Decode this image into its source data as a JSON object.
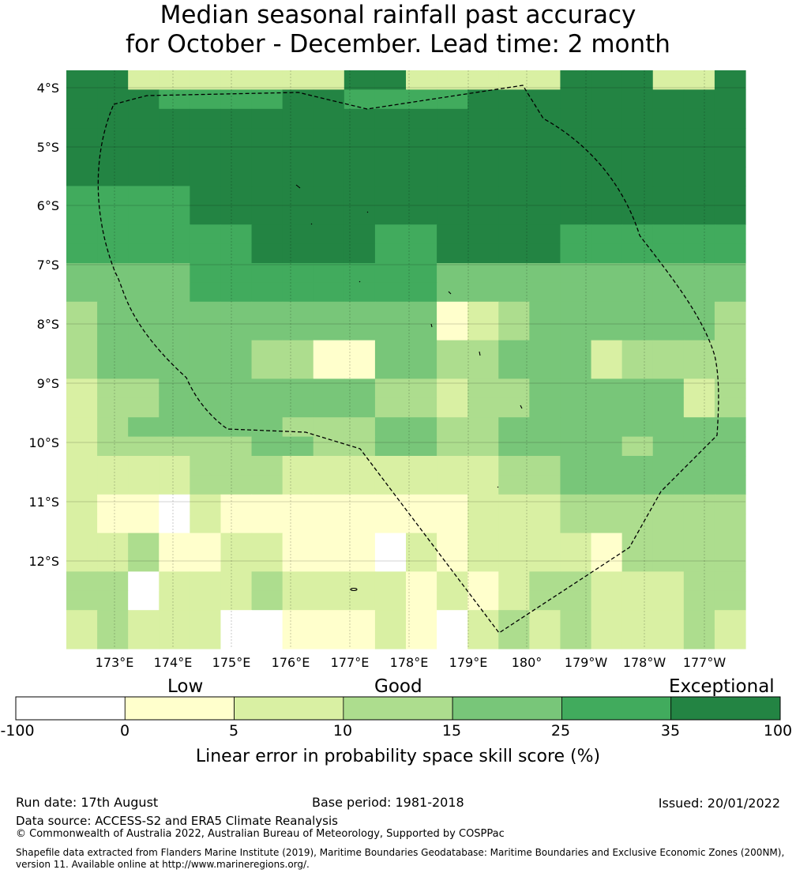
{
  "title": {
    "line1": "Median seasonal rainfall past accuracy",
    "line2": "for October - December. Lead time: 2 month"
  },
  "map": {
    "lat_labels": [
      "4°S",
      "5°S",
      "6°S",
      "7°S",
      "8°S",
      "9°S",
      "10°S",
      "11°S",
      "12°S"
    ],
    "lon_labels": [
      "173°E",
      "174°E",
      "175°E",
      "176°E",
      "177°E",
      "178°E",
      "179°E",
      "180°",
      "179°W",
      "178°W",
      "177°W"
    ],
    "legend_colors": [
      "#ffffff",
      "#ffffcc",
      "#d9f0a3",
      "#addd8e",
      "#78c679",
      "#41ab5d",
      "#238443"
    ],
    "grid_codes": [
      "6622222226622222666226",
      "6665555665555666666666",
      "6666666666666666666666",
      "6666666666666666666666",
      "6666666666666666666666",
      "6666666666666666666666",
      "5555666666666666666666",
      "5555666666666666666666",
      "5555556666556666555555",
      "5555556666556666555555",
      "4444555555554444444444",
      "4444555555554444444444",
      "3444444444441234444443",
      "3444444444441234444443",
      "3444443311443344423333",
      "3444443311443344423333",
      "2334444444332334444423",
      "2334444444332334444423",
      "2344444333443344444444",
      "2333334433443344443444",
      "2222333222222233444444",
      "2222333222222233444444",
      "2110211111111222333333",
      "2110211111111222333333",
      "2231122111021222213333",
      "2231122111021222213333",
      "3302223222212123322233",
      "3302223222212123322233",
      "2322200111210232322232",
      "2322200111210232322232"
    ]
  },
  "colorbar": {
    "categories": [
      "Low",
      "Good",
      "Exceptional"
    ],
    "ticks": [
      "-100",
      "0",
      "5",
      "10",
      "15",
      "25",
      "35",
      "100"
    ],
    "label": "Linear error in probability space skill score (%)"
  },
  "footer": {
    "run_date": "Run date: 17th August",
    "base_period": "Base period: 1981-2018",
    "issued": "Issued: 20/01/2022",
    "data_source": "Data source: ACCESS-S2 and ERA5 Climate Reanalysis",
    "copyright": "© Commonwealth of Australia 2022, Australian Bureau of Meteorology, Supported by COSPPac",
    "shapefile": "Shapefile data extracted from Flanders Marine Institute (2019), Maritime Boundaries Geodatabase: Maritime Boundaries and Exclusive Economic Zones (200NM), version 11. Available online at http://www.marineregions.org/."
  }
}
